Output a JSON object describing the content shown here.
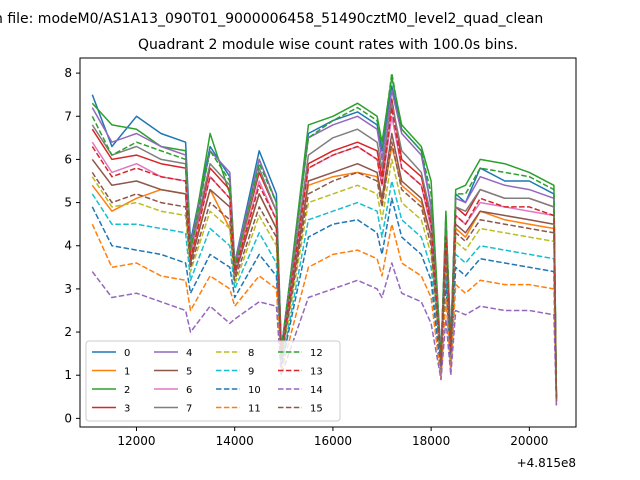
{
  "figure": {
    "suptitle": "n file: modeM0/AS1A13_090T01_9000006458_51490cztM0_level2_quad_clean"
  },
  "chart_data": {
    "type": "line",
    "title": "Quadrant 2 module wise count rates with 100.0s bins.",
    "xlabel": "",
    "ylabel": "",
    "x_offset_label": "+4.815e8",
    "xlim": [
      10850,
      20950
    ],
    "ylim": [
      -0.2,
      8.35
    ],
    "xticks": [
      12000,
      14000,
      16000,
      18000,
      20000
    ],
    "yticks": [
      0,
      1,
      2,
      3,
      4,
      5,
      6,
      7,
      8
    ],
    "grid": false,
    "legend": {
      "placement": "lower-left",
      "columns": 4
    },
    "x": [
      11100,
      11500,
      12000,
      12500,
      13000,
      13100,
      13500,
      13900,
      14000,
      14500,
      14850,
      14950,
      15500,
      16000,
      16500,
      16900,
      17000,
      17200,
      17400,
      17800,
      18000,
      18200,
      18300,
      18400,
      18500,
      18700,
      19000,
      19500,
      20000,
      20500,
      20550
    ],
    "series": [
      {
        "name": "0",
        "color": "#1f77b4",
        "dash": "solid",
        "values": [
          7.5,
          6.3,
          7.0,
          6.6,
          6.4,
          4.1,
          6.3,
          5.6,
          3.6,
          6.2,
          5.2,
          1.6,
          6.6,
          6.9,
          7.1,
          6.8,
          6.2,
          7.7,
          6.7,
          6.2,
          4.9,
          1.5,
          4.5,
          1.8,
          5.2,
          5.0,
          5.8,
          5.5,
          5.5,
          5.2,
          0.5
        ]
      },
      {
        "name": "1",
        "color": "#ff7f0e",
        "dash": "solid",
        "values": [
          5.4,
          4.8,
          5.1,
          5.3,
          5.2,
          3.7,
          5.3,
          4.4,
          3.4,
          5.2,
          4.4,
          1.4,
          5.4,
          5.6,
          5.7,
          5.6,
          5.0,
          6.3,
          5.4,
          5.0,
          4.2,
          1.2,
          3.9,
          1.5,
          4.4,
          4.2,
          4.8,
          4.6,
          4.5,
          4.4,
          0.4
        ]
      },
      {
        "name": "2",
        "color": "#2ca02c",
        "dash": "solid",
        "values": [
          7.3,
          6.8,
          6.7,
          6.3,
          6.2,
          3.9,
          6.6,
          5.2,
          3.5,
          6.0,
          5.0,
          1.5,
          6.8,
          7.0,
          7.3,
          7.0,
          6.4,
          7.9,
          6.8,
          6.3,
          5.5,
          1.4,
          4.8,
          1.7,
          5.3,
          5.4,
          6.0,
          5.9,
          5.7,
          5.4,
          0.5
        ]
      },
      {
        "name": "3",
        "color": "#d62728",
        "dash": "solid",
        "values": [
          6.7,
          6.0,
          6.1,
          5.9,
          5.8,
          3.8,
          5.8,
          5.3,
          3.5,
          5.7,
          4.8,
          1.5,
          5.9,
          6.2,
          6.4,
          6.2,
          5.6,
          7.4,
          6.0,
          5.6,
          4.6,
          1.3,
          4.3,
          1.6,
          4.9,
          4.7,
          5.3,
          5.1,
          5.1,
          4.9,
          0.5
        ]
      },
      {
        "name": "4",
        "color": "#9467bd",
        "dash": "solid",
        "values": [
          7.2,
          6.4,
          6.6,
          6.3,
          6.1,
          4.0,
          6.2,
          5.7,
          3.6,
          6.0,
          5.0,
          1.6,
          6.5,
          6.8,
          7.0,
          6.7,
          6.0,
          7.6,
          6.6,
          6.1,
          4.9,
          1.5,
          4.5,
          1.8,
          5.1,
          5.0,
          5.6,
          5.4,
          5.3,
          5.1,
          0.5
        ]
      },
      {
        "name": "5",
        "color": "#8c564b",
        "dash": "solid",
        "values": [
          6.0,
          5.4,
          5.5,
          5.3,
          5.2,
          3.6,
          5.3,
          4.9,
          3.3,
          5.2,
          4.4,
          1.4,
          5.5,
          5.7,
          5.9,
          5.7,
          5.1,
          6.6,
          5.5,
          5.1,
          4.2,
          1.2,
          3.9,
          1.5,
          4.5,
          4.3,
          4.8,
          4.7,
          4.6,
          4.5,
          0.4
        ]
      },
      {
        "name": "6",
        "color": "#e377c2",
        "dash": "solid",
        "values": [
          6.4,
          5.7,
          5.9,
          5.6,
          5.5,
          3.8,
          5.6,
          5.1,
          3.4,
          5.5,
          4.6,
          1.5,
          5.8,
          6.1,
          6.3,
          6.0,
          5.4,
          7.0,
          5.8,
          5.4,
          4.4,
          1.3,
          4.1,
          1.6,
          4.7,
          4.5,
          5.0,
          4.9,
          4.8,
          4.7,
          0.4
        ]
      },
      {
        "name": "7",
        "color": "#7f7f7f",
        "dash": "solid",
        "values": [
          6.8,
          6.1,
          6.3,
          6.0,
          5.9,
          3.9,
          5.9,
          5.4,
          3.5,
          5.8,
          4.8,
          1.5,
          6.1,
          6.5,
          6.7,
          6.4,
          5.8,
          7.3,
          6.2,
          5.7,
          4.7,
          1.4,
          4.3,
          1.7,
          4.9,
          4.8,
          5.3,
          5.1,
          5.1,
          4.9,
          0.5
        ]
      },
      {
        "name": "8",
        "color": "#bcbd22",
        "dash": "dashed",
        "values": [
          5.6,
          4.9,
          5.0,
          4.8,
          4.7,
          3.4,
          4.8,
          4.4,
          3.1,
          4.7,
          4.0,
          1.3,
          5.0,
          5.2,
          5.4,
          5.2,
          4.6,
          6.0,
          5.0,
          4.6,
          3.8,
          1.1,
          3.6,
          1.4,
          4.1,
          3.9,
          4.4,
          4.3,
          4.2,
          4.1,
          0.4
        ]
      },
      {
        "name": "9",
        "color": "#17becf",
        "dash": "dashed",
        "values": [
          5.2,
          4.5,
          4.5,
          4.4,
          4.3,
          3.2,
          4.4,
          4.0,
          3.0,
          4.3,
          3.6,
          1.2,
          4.6,
          4.8,
          5.0,
          4.8,
          4.2,
          5.5,
          4.6,
          4.2,
          3.5,
          1.0,
          3.3,
          1.3,
          3.8,
          3.6,
          4.0,
          3.9,
          3.8,
          3.7,
          0.4
        ]
      },
      {
        "name": "10",
        "color": "#1f77b4",
        "dash": "dashed",
        "values": [
          4.9,
          4.0,
          3.9,
          3.8,
          3.6,
          2.9,
          3.8,
          3.5,
          2.8,
          3.8,
          3.3,
          1.2,
          4.2,
          4.5,
          4.6,
          4.3,
          3.8,
          5.1,
          4.2,
          3.8,
          3.2,
          1.0,
          3.1,
          1.2,
          3.5,
          3.3,
          3.7,
          3.6,
          3.5,
          3.4,
          0.4
        ]
      },
      {
        "name": "11",
        "color": "#ff7f0e",
        "dash": "dashed",
        "values": [
          4.5,
          3.5,
          3.6,
          3.3,
          3.2,
          2.5,
          3.3,
          3.0,
          2.6,
          3.3,
          3.0,
          1.1,
          3.5,
          3.8,
          3.9,
          3.7,
          3.3,
          4.5,
          3.6,
          3.3,
          2.8,
          0.9,
          2.8,
          1.1,
          3.1,
          2.9,
          3.2,
          3.1,
          3.1,
          3.0,
          0.3
        ]
      },
      {
        "name": "12",
        "color": "#2ca02c",
        "dash": "dashed",
        "values": [
          7.0,
          6.1,
          6.4,
          6.2,
          6.0,
          3.9,
          6.2,
          5.5,
          3.5,
          5.9,
          5.0,
          1.6,
          6.5,
          6.9,
          7.2,
          6.9,
          6.3,
          8.0,
          6.7,
          6.2,
          5.2,
          1.4,
          4.7,
          1.7,
          5.2,
          5.2,
          5.8,
          5.7,
          5.6,
          5.3,
          0.5
        ]
      },
      {
        "name": "13",
        "color": "#d62728",
        "dash": "dashed",
        "values": [
          6.3,
          5.6,
          5.8,
          5.6,
          5.5,
          3.7,
          5.6,
          5.1,
          3.4,
          5.4,
          4.6,
          1.5,
          5.8,
          6.1,
          6.3,
          6.0,
          5.4,
          7.2,
          5.8,
          5.4,
          4.5,
          1.3,
          4.2,
          1.6,
          4.7,
          4.5,
          5.1,
          4.9,
          4.9,
          4.7,
          0.4
        ]
      },
      {
        "name": "14",
        "color": "#9467bd",
        "dash": "dashed",
        "values": [
          3.4,
          2.8,
          2.9,
          2.7,
          2.5,
          2.0,
          2.6,
          2.2,
          2.3,
          2.7,
          2.6,
          1.0,
          2.8,
          3.0,
          3.2,
          3.0,
          2.8,
          3.6,
          2.9,
          2.7,
          2.2,
          0.9,
          2.3,
          1.0,
          2.5,
          2.4,
          2.6,
          2.5,
          2.5,
          2.4,
          0.3
        ]
      },
      {
        "name": "15",
        "color": "#8c564b",
        "dash": "dashed",
        "values": [
          5.7,
          5.0,
          5.2,
          5.0,
          4.9,
          3.5,
          5.0,
          4.6,
          3.2,
          4.9,
          4.2,
          1.4,
          5.2,
          5.5,
          5.7,
          5.5,
          4.9,
          6.4,
          5.3,
          4.9,
          4.0,
          1.2,
          3.8,
          1.5,
          4.3,
          4.1,
          4.6,
          4.5,
          4.4,
          4.3,
          0.4
        ]
      }
    ]
  }
}
